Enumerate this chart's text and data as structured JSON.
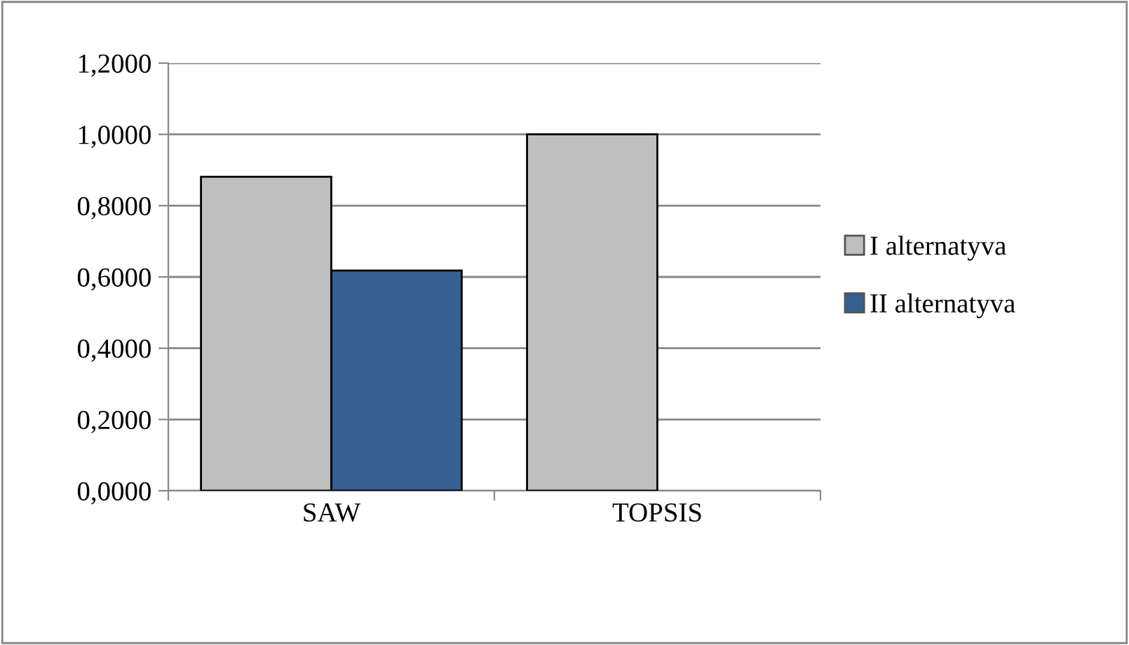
{
  "chart_data": {
    "type": "bar",
    "categories": [
      "SAW",
      "TOPSIS"
    ],
    "series": [
      {
        "name": "I alternatyva",
        "color": "#bfbfbf",
        "values": [
          0.881,
          1.0
        ]
      },
      {
        "name": "II alternatyva",
        "color": "#376092",
        "values": [
          0.618,
          null
        ]
      }
    ],
    "ylim": [
      0,
      1.2
    ],
    "yticks": [
      {
        "value": 0,
        "label": "0,0000"
      },
      {
        "value": 0.2,
        "label": "0,2000"
      },
      {
        "value": 0.4,
        "label": "0,4000"
      },
      {
        "value": 0.6,
        "label": "0,6000"
      },
      {
        "value": 0.8,
        "label": "0,8000"
      },
      {
        "value": 1.0,
        "label": "1,0000"
      },
      {
        "value": 1.2,
        "label": "1,2000"
      }
    ],
    "grid": "y",
    "legend": "right"
  }
}
